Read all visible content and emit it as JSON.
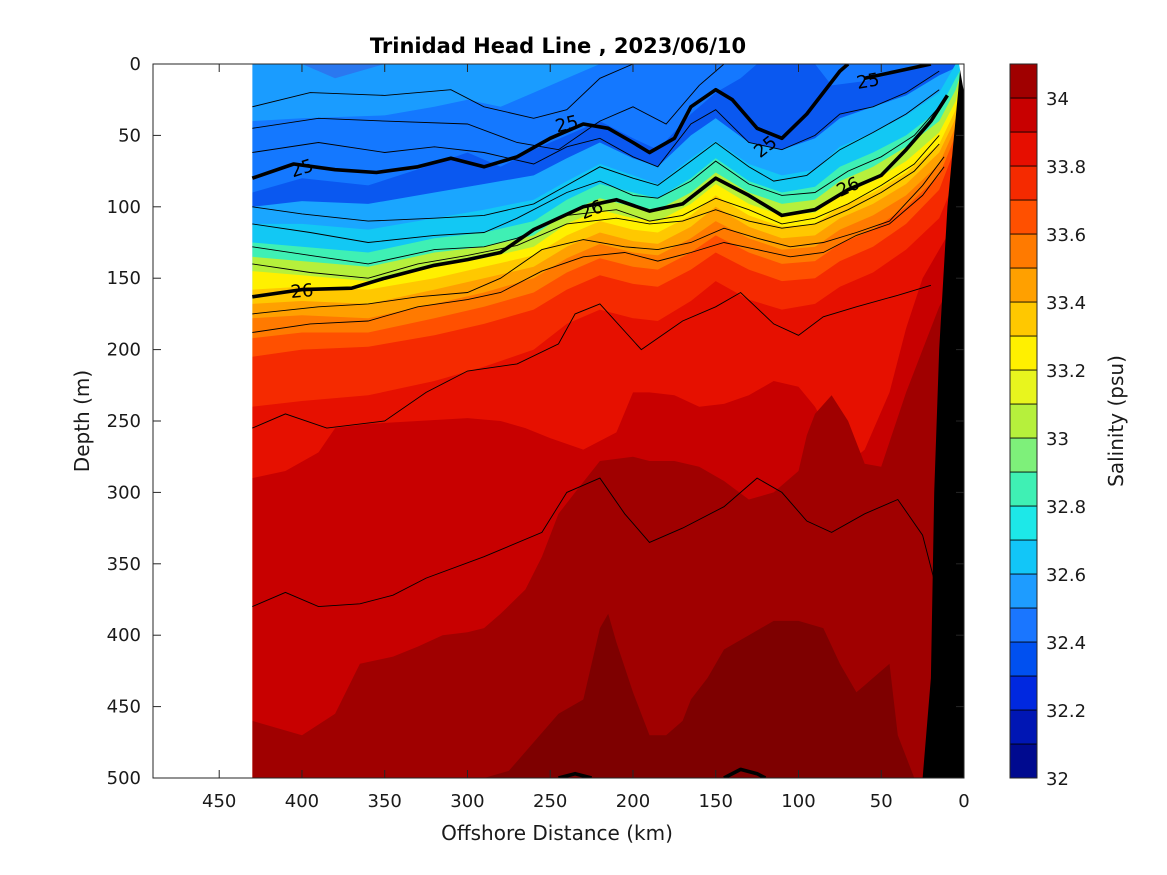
{
  "chart_data": {
    "type": "heatmap",
    "title": "Trinidad Head Line , 2023/06/10",
    "xlabel": "Offshore Distance (km)",
    "ylabel": "Depth (m)",
    "xlim": [
      490,
      0
    ],
    "ylim": [
      0,
      500
    ],
    "x_ticks": [
      "450",
      "400",
      "350",
      "300",
      "250",
      "200",
      "150",
      "100",
      "50",
      "0"
    ],
    "y_ticks": [
      "0",
      "50",
      "100",
      "150",
      "200",
      "250",
      "300",
      "350",
      "400",
      "450",
      "500"
    ],
    "colorbar": {
      "label": "Salinity (psu)",
      "range": [
        32,
        34.1
      ],
      "ticks": [
        "32",
        "32.2",
        "32.4",
        "32.6",
        "32.8",
        "33",
        "33.2",
        "33.4",
        "33.6",
        "33.8",
        "34"
      ],
      "colors": [
        "#000a8f",
        "#0016b4",
        "#0028e0",
        "#0050f0",
        "#1a76ff",
        "#1e9cff",
        "#12c6f8",
        "#1de8e8",
        "#3ff0b4",
        "#7ef07a",
        "#b6f03c",
        "#e8f51e",
        "#fff000",
        "#ffc800",
        "#ffa000",
        "#ff7a00",
        "#ff5000",
        "#f52a00",
        "#e60e00",
        "#c80000",
        "#a00000"
      ]
    },
    "data_start_km": 430,
    "density_contours": [
      {
        "label": "25",
        "points": [
          [
            430,
            80
          ],
          [
            405,
            70
          ],
          [
            380,
            74
          ],
          [
            355,
            76
          ],
          [
            330,
            72
          ],
          [
            310,
            66
          ],
          [
            290,
            72
          ],
          [
            270,
            65
          ],
          [
            250,
            52
          ],
          [
            230,
            42
          ],
          [
            215,
            45
          ],
          [
            200,
            55
          ],
          [
            190,
            62
          ],
          [
            175,
            52
          ],
          [
            165,
            30
          ],
          [
            150,
            18
          ],
          [
            140,
            25
          ],
          [
            125,
            45
          ],
          [
            110,
            52
          ],
          [
            95,
            35
          ],
          [
            85,
            20
          ],
          [
            75,
            5
          ],
          [
            70,
            0
          ]
        ]
      },
      {
        "label": "25",
        "points": [
          [
            60,
            10
          ],
          [
            40,
            5
          ],
          [
            20,
            0
          ]
        ]
      },
      {
        "label": "26",
        "points": [
          [
            430,
            163
          ],
          [
            400,
            158
          ],
          [
            370,
            157
          ],
          [
            350,
            150
          ],
          [
            320,
            141
          ],
          [
            300,
            137
          ],
          [
            280,
            132
          ],
          [
            260,
            116
          ],
          [
            230,
            100
          ],
          [
            210,
            95
          ],
          [
            190,
            103
          ],
          [
            170,
            98
          ],
          [
            150,
            80
          ],
          [
            130,
            92
          ],
          [
            110,
            106
          ],
          [
            90,
            102
          ],
          [
            70,
            88
          ],
          [
            50,
            78
          ],
          [
            35,
            60
          ],
          [
            20,
            40
          ],
          [
            10,
            22
          ]
        ]
      },
      {
        "label": "",
        "points": [
          [
            245,
            500
          ],
          [
            235,
            497
          ],
          [
            225,
            500
          ]
        ]
      },
      {
        "label": "",
        "points": [
          [
            145,
            500
          ],
          [
            135,
            494
          ],
          [
            125,
            497
          ],
          [
            120,
            500
          ]
        ]
      }
    ],
    "isopycnals": [
      [
        [
          430,
          30
        ],
        [
          395,
          20
        ],
        [
          350,
          22
        ],
        [
          310,
          18
        ],
        [
          290,
          30
        ],
        [
          260,
          38
        ],
        [
          240,
          32
        ],
        [
          220,
          10
        ],
        [
          200,
          0
        ]
      ],
      [
        [
          430,
          45
        ],
        [
          390,
          38
        ],
        [
          350,
          40
        ],
        [
          300,
          42
        ],
        [
          270,
          55
        ],
        [
          245,
          60
        ],
        [
          220,
          40
        ],
        [
          200,
          30
        ],
        [
          180,
          42
        ],
        [
          160,
          15
        ],
        [
          145,
          0
        ]
      ],
      [
        [
          430,
          62
        ],
        [
          390,
          55
        ],
        [
          350,
          62
        ],
        [
          320,
          58
        ],
        [
          290,
          62
        ],
        [
          260,
          70
        ],
        [
          240,
          58
        ],
        [
          220,
          52
        ],
        [
          200,
          65
        ],
        [
          185,
          72
        ],
        [
          165,
          42
        ],
        [
          150,
          32
        ],
        [
          130,
          55
        ],
        [
          110,
          60
        ],
        [
          90,
          50
        ],
        [
          75,
          35
        ],
        [
          55,
          30
        ],
        [
          35,
          20
        ],
        [
          15,
          5
        ]
      ],
      [
        [
          430,
          100
        ],
        [
          400,
          105
        ],
        [
          360,
          110
        ],
        [
          320,
          108
        ],
        [
          290,
          106
        ],
        [
          260,
          98
        ],
        [
          240,
          85
        ],
        [
          220,
          72
        ],
        [
          200,
          80
        ],
        [
          185,
          85
        ],
        [
          165,
          68
        ],
        [
          150,
          55
        ],
        [
          130,
          72
        ],
        [
          115,
          82
        ],
        [
          95,
          78
        ],
        [
          75,
          60
        ],
        [
          55,
          48
        ],
        [
          35,
          35
        ],
        [
          15,
          18
        ]
      ],
      [
        [
          430,
          112
        ],
        [
          395,
          118
        ],
        [
          360,
          125
        ],
        [
          320,
          120
        ],
        [
          290,
          118
        ],
        [
          270,
          108
        ],
        [
          240,
          90
        ],
        [
          220,
          82
        ],
        [
          200,
          92
        ],
        [
          185,
          94
        ],
        [
          165,
          82
        ],
        [
          150,
          68
        ],
        [
          130,
          84
        ],
        [
          110,
          92
        ],
        [
          90,
          90
        ],
        [
          70,
          75
        ],
        [
          50,
          65
        ],
        [
          30,
          50
        ],
        [
          15,
          30
        ]
      ],
      [
        [
          430,
          128
        ],
        [
          395,
          134
        ],
        [
          360,
          140
        ],
        [
          320,
          130
        ],
        [
          290,
          128
        ],
        [
          270,
          122
        ],
        [
          240,
          106
        ],
        [
          210,
          102
        ],
        [
          190,
          110
        ],
        [
          170,
          106
        ],
        [
          150,
          94
        ],
        [
          130,
          102
        ],
        [
          110,
          112
        ],
        [
          90,
          108
        ],
        [
          70,
          98
        ],
        [
          50,
          85
        ],
        [
          30,
          70
        ],
        [
          15,
          50
        ]
      ],
      [
        [
          430,
          140
        ],
        [
          395,
          146
        ],
        [
          360,
          150
        ],
        [
          330,
          140
        ],
        [
          300,
          134
        ],
        [
          270,
          127
        ],
        [
          240,
          112
        ],
        [
          210,
          108
        ],
        [
          190,
          112
        ],
        [
          170,
          110
        ],
        [
          150,
          102
        ],
        [
          130,
          110
        ],
        [
          110,
          115
        ],
        [
          90,
          112
        ],
        [
          70,
          102
        ],
        [
          50,
          90
        ],
        [
          30,
          75
        ],
        [
          15,
          56
        ]
      ],
      [
        [
          430,
          175
        ],
        [
          390,
          170
        ],
        [
          360,
          168
        ],
        [
          330,
          163
        ],
        [
          300,
          160
        ],
        [
          280,
          150
        ],
        [
          255,
          130
        ],
        [
          230,
          123
        ],
        [
          205,
          128
        ],
        [
          185,
          130
        ],
        [
          165,
          125
        ],
        [
          145,
          115
        ],
        [
          125,
          122
        ],
        [
          105,
          128
        ],
        [
          85,
          125
        ],
        [
          65,
          118
        ],
        [
          45,
          110
        ],
        [
          25,
          85
        ],
        [
          12,
          65
        ]
      ],
      [
        [
          430,
          188
        ],
        [
          395,
          182
        ],
        [
          360,
          180
        ],
        [
          330,
          170
        ],
        [
          300,
          165
        ],
        [
          280,
          160
        ],
        [
          255,
          145
        ],
        [
          230,
          135
        ],
        [
          205,
          132
        ],
        [
          185,
          138
        ],
        [
          165,
          132
        ],
        [
          145,
          125
        ],
        [
          125,
          130
        ],
        [
          105,
          135
        ],
        [
          85,
          132
        ],
        [
          65,
          120
        ],
        [
          45,
          112
        ],
        [
          25,
          92
        ],
        [
          12,
          72
        ]
      ],
      [
        [
          430,
          255
        ],
        [
          410,
          245
        ],
        [
          385,
          255
        ],
        [
          350,
          250
        ],
        [
          325,
          230
        ],
        [
          300,
          215
        ],
        [
          270,
          210
        ],
        [
          245,
          196
        ],
        [
          235,
          175
        ],
        [
          220,
          168
        ],
        [
          195,
          200
        ],
        [
          170,
          180
        ],
        [
          150,
          170
        ],
        [
          135,
          160
        ],
        [
          115,
          182
        ],
        [
          100,
          190
        ],
        [
          85,
          177
        ],
        [
          65,
          170
        ],
        [
          40,
          162
        ],
        [
          20,
          155
        ]
      ],
      [
        [
          430,
          380
        ],
        [
          410,
          370
        ],
        [
          390,
          380
        ],
        [
          365,
          378
        ],
        [
          345,
          372
        ],
        [
          325,
          360
        ],
        [
          290,
          345
        ],
        [
          255,
          328
        ],
        [
          240,
          300
        ],
        [
          220,
          290
        ],
        [
          205,
          315
        ],
        [
          190,
          335
        ],
        [
          170,
          325
        ],
        [
          145,
          310
        ],
        [
          125,
          290
        ],
        [
          110,
          300
        ],
        [
          95,
          320
        ],
        [
          80,
          328
        ],
        [
          60,
          315
        ],
        [
          40,
          305
        ],
        [
          25,
          330
        ],
        [
          15,
          375
        ]
      ]
    ]
  }
}
